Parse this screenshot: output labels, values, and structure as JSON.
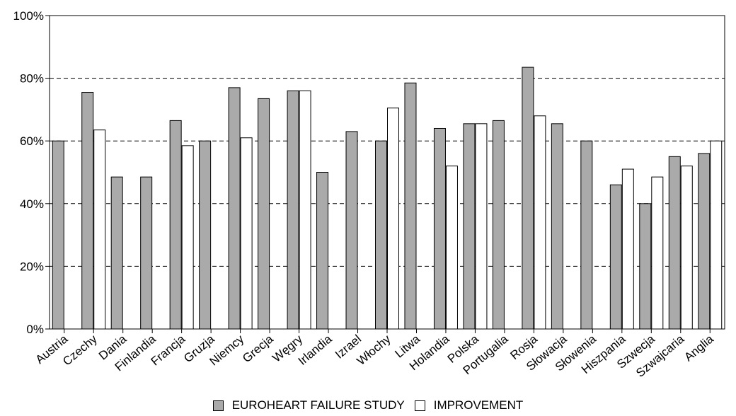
{
  "chart_data": {
    "type": "bar",
    "categories": [
      "Austria",
      "Czechy",
      "Dania",
      "Finlandia",
      "Francja",
      "Gruzja",
      "Niemcy",
      "Grecja",
      "Węgry",
      "Irlandia",
      "Izrael",
      "Włochy",
      "Litwa",
      "Holandia",
      "Polska",
      "Portugalia",
      "Rosja",
      "Słowacja",
      "Słowenia",
      "Hiszpania",
      "Szwecja",
      "Szwajcaria",
      "Anglia"
    ],
    "series": [
      {
        "name": "EUROHEART FAILURE STUDY",
        "color": "#aaaaaa",
        "values": [
          60,
          75.5,
          48.5,
          48.5,
          66.5,
          60,
          77,
          73.5,
          76,
          50,
          63,
          60,
          78.5,
          64,
          65.5,
          66.5,
          83.5,
          65.5,
          60,
          46,
          40,
          55,
          56
        ]
      },
      {
        "name": "IMPROVEMENT",
        "color": "#ffffff",
        "values": [
          null,
          63.5,
          null,
          null,
          58.5,
          null,
          61,
          null,
          76,
          null,
          null,
          70.5,
          null,
          52,
          65.5,
          null,
          68,
          null,
          null,
          51,
          48.5,
          52,
          60
        ]
      }
    ],
    "yticks": [
      "0%",
      "20%",
      "40%",
      "60%",
      "80%",
      "100%"
    ],
    "ylim": [
      0,
      100
    ],
    "grid": "dashed horizontal at 20%, 40%, 60%, 80%",
    "legend": "bottom-center"
  },
  "legend": {
    "series1_label": "EUROHEART FAILURE STUDY",
    "series2_label": "IMPROVEMENT"
  }
}
